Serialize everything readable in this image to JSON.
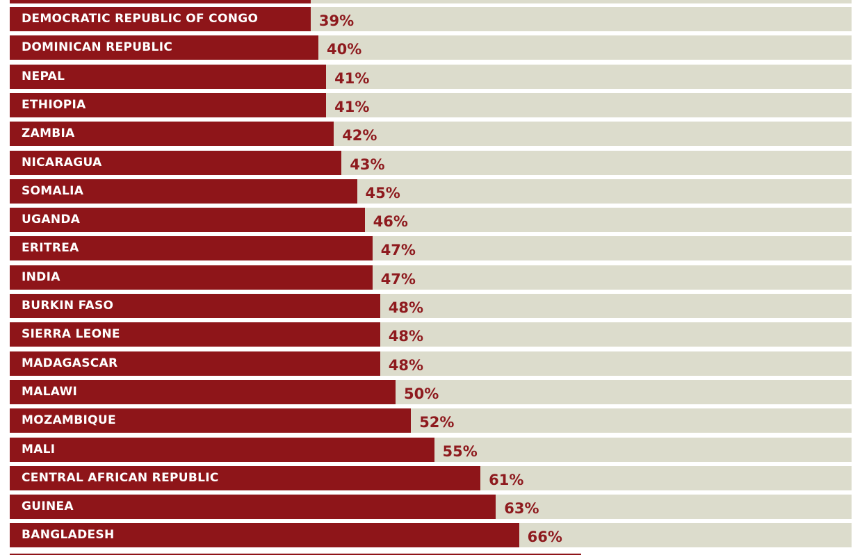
{
  "colors": {
    "bar": "#8e1519",
    "track": "#dcdccc",
    "label_text": "#ffffff",
    "value_text": "#8e1a1e"
  },
  "chart_data": {
    "type": "bar",
    "orientation": "horizontal",
    "title": "",
    "xlabel": "",
    "ylabel": "",
    "categories": [
      "DEMOCRATIC REPUBLIC OF CONGO",
      "DOMINICAN REPUBLIC",
      "NEPAL",
      "ETHIOPIA",
      "ZAMBIA",
      "NICARAGUA",
      "SOMALIA",
      "UGANDA",
      "ERITREA",
      "INDIA",
      "BURKIN FASO",
      "SIERRA LEONE",
      "MADAGASCAR",
      "MALAWI",
      "MOZAMBIQUE",
      "MALI",
      "CENTRAL AFRICAN REPUBLIC",
      "GUINEA",
      "BANGLADESH"
    ],
    "values": [
      39,
      40,
      41,
      41,
      42,
      43,
      45,
      46,
      47,
      47,
      48,
      48,
      48,
      50,
      52,
      55,
      61,
      63,
      66
    ],
    "value_labels": [
      "39%",
      "40%",
      "41%",
      "41%",
      "42%",
      "43%",
      "45%",
      "46%",
      "47%",
      "47%",
      "48%",
      "48%",
      "48%",
      "50%",
      "52%",
      "55%",
      "61%",
      "63%",
      "66%"
    ],
    "grid": false,
    "legend": "none"
  }
}
